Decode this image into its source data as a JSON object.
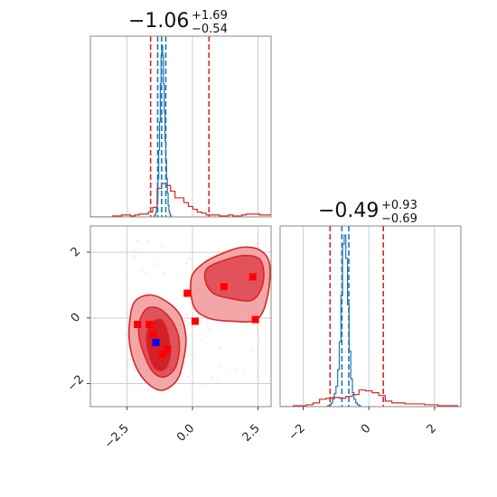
{
  "chart_data": {
    "type": "corner",
    "colors": {
      "red": "#d62728",
      "blue": "#1f77b4",
      "marker_red": "#ff0000",
      "marker_blue": "#0000ff",
      "fill_light": "#f2a6a7",
      "fill_mid": "#e2525a",
      "fill_dark": "#d41f26",
      "grid": "#cfcfcf",
      "frame": "#888888"
    },
    "params": [
      {
        "median": -1.06,
        "plus": 1.69,
        "minus": 0.54,
        "title_main": "−1.06",
        "title_sup": "+1.69",
        "title_sub": "−0.54",
        "lim": [
          -3.9,
          3.0
        ]
      },
      {
        "median": -0.49,
        "plus": 0.93,
        "minus": 0.69,
        "title_main": "−0.49",
        "title_sup": "+0.93",
        "title_sub": "−0.69",
        "lim": [
          -2.7,
          2.8
        ]
      }
    ],
    "x_ticks": [
      -2.5,
      0.0,
      2.5
    ],
    "x_tick_labels": [
      "−2.5",
      "0.0",
      "2.5"
    ],
    "y_ticks": [
      -2,
      0,
      2
    ],
    "y_tick_labels": [
      "−2",
      "0",
      "2"
    ],
    "d2_ticks": [
      -2,
      0,
      2
    ],
    "d2_tick_labels": [
      "−2",
      "0",
      "2"
    ],
    "hist1_red": {
      "edges_start": -3.9,
      "bin_width": 0.17,
      "counts": [
        0,
        0,
        0,
        0,
        0,
        1,
        1,
        2,
        2,
        1,
        2,
        3,
        3,
        5,
        10,
        30,
        35,
        33,
        27,
        20,
        20,
        15,
        11,
        8,
        5,
        4,
        2,
        2,
        2,
        1,
        1,
        2,
        1,
        1,
        2,
        3,
        3,
        3,
        2,
        2,
        2,
        2,
        2,
        1,
        1,
        1,
        1,
        1,
        0,
        0
      ]
    },
    "hist1_blue": {
      "edges_start": -1.5,
      "bin_width": 0.03,
      "counts": [
        0,
        1,
        2,
        4,
        10,
        20,
        40,
        70,
        100,
        140,
        170,
        180,
        170,
        140,
        110,
        80,
        60,
        40,
        25,
        12,
        6,
        3,
        1,
        0
      ]
    },
    "hist1_red_lines": [
      -1.6,
      0.63
    ],
    "hist1_blue_lines": [
      -1.33,
      -1.18,
      -1.02
    ],
    "hist2_red": {
      "edges_start": -2.7,
      "bin_width": 0.2,
      "counts": [
        0,
        0,
        1,
        1,
        2,
        4,
        8,
        9,
        10,
        9,
        11,
        13,
        18,
        17,
        15,
        12,
        6,
        4,
        4,
        3,
        3,
        3,
        2,
        2,
        1,
        1,
        1,
        0
      ]
    },
    "hist2_blue": {
      "edges_start": -1.3,
      "bin_width": 0.05,
      "counts": [
        0,
        1,
        2,
        4,
        8,
        14,
        22,
        40,
        70,
        120,
        175,
        185,
        160,
        110,
        60,
        30,
        15,
        8,
        4,
        2,
        1,
        0
      ]
    },
    "hist2_red_lines": [
      -1.18,
      0.44
    ],
    "hist2_blue_lines": [
      -0.82,
      -0.61
    ],
    "contours": [
      {
        "level": "outer",
        "points": [
          [
            -2.4,
            -0.1
          ],
          [
            -2.2,
            0.5
          ],
          [
            -1.6,
            0.7
          ],
          [
            -0.9,
            0.45
          ],
          [
            -0.45,
            0.05
          ],
          [
            -0.25,
            -0.6
          ],
          [
            -0.35,
            -1.3
          ],
          [
            -0.6,
            -1.9
          ],
          [
            -1.15,
            -2.2
          ],
          [
            -1.7,
            -2.0
          ],
          [
            -2.15,
            -1.5
          ],
          [
            -2.4,
            -0.8
          ]
        ]
      },
      {
        "level": "outer",
        "points": [
          [
            -0.05,
            1.2
          ],
          [
            0.4,
            1.65
          ],
          [
            1.1,
            1.95
          ],
          [
            1.9,
            2.15
          ],
          [
            2.6,
            2.05
          ],
          [
            2.95,
            1.6
          ],
          [
            2.85,
            0.6
          ],
          [
            2.45,
            -0.05
          ],
          [
            1.5,
            -0.1
          ],
          [
            0.6,
            0.0
          ],
          [
            0.05,
            0.35
          ]
        ]
      },
      {
        "level": "mid",
        "points": [
          [
            -2.0,
            -0.05
          ],
          [
            -1.7,
            0.3
          ],
          [
            -1.2,
            0.25
          ],
          [
            -0.7,
            -0.2
          ],
          [
            -0.5,
            -0.8
          ],
          [
            -0.65,
            -1.5
          ],
          [
            -1.1,
            -1.8
          ],
          [
            -1.55,
            -1.6
          ],
          [
            -1.9,
            -1.0
          ],
          [
            -2.05,
            -0.5
          ]
        ]
      },
      {
        "level": "mid",
        "points": [
          [
            0.55,
            1.5
          ],
          [
            1.2,
            1.75
          ],
          [
            2.0,
            1.9
          ],
          [
            2.6,
            1.75
          ],
          [
            2.7,
            1.1
          ],
          [
            2.3,
            0.55
          ],
          [
            1.4,
            0.6
          ],
          [
            0.8,
            0.75
          ],
          [
            0.5,
            1.1
          ]
        ]
      },
      {
        "level": "inner",
        "points": [
          [
            -1.6,
            -0.2
          ],
          [
            -1.2,
            -0.05
          ],
          [
            -0.95,
            -0.45
          ],
          [
            -0.85,
            -1.1
          ],
          [
            -1.05,
            -1.55
          ],
          [
            -1.4,
            -1.55
          ],
          [
            -1.65,
            -1.15
          ],
          [
            -1.75,
            -0.6
          ]
        ]
      }
    ],
    "markers_red": [
      [
        -2.1,
        -0.2
      ],
      [
        -1.65,
        -0.2
      ],
      [
        -1.5,
        -0.5
      ],
      [
        -0.95,
        -0.95
      ],
      [
        -1.15,
        -1.1
      ],
      [
        -0.2,
        0.75
      ],
      [
        0.1,
        -0.1
      ],
      [
        1.2,
        0.95
      ],
      [
        2.3,
        1.25
      ],
      [
        2.4,
        -0.05
      ]
    ],
    "markers_blue": [
      [
        -1.4,
        -0.75
      ]
    ]
  }
}
